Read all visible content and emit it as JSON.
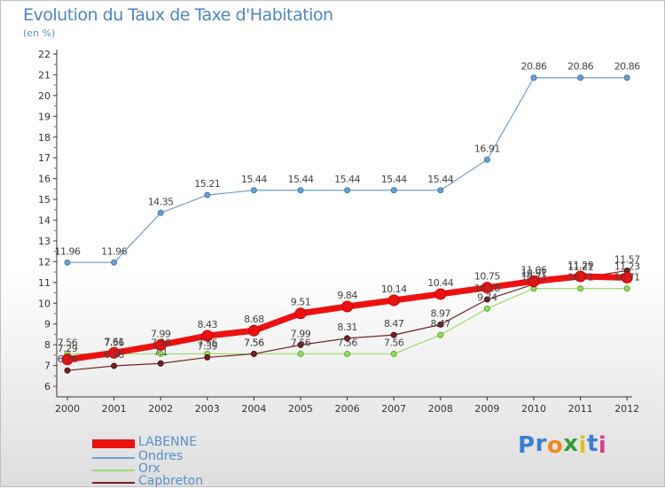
{
  "title": "Evolution du Taux de Taxe d'Habitation",
  "subtitle": "(en %)",
  "logo": {
    "text": "Proxiti",
    "letters": [
      "P",
      "r",
      "o",
      "x",
      "i",
      "t",
      "i"
    ],
    "colors": [
      "#3a7fd0",
      "#3a7fd0",
      "#f08a1a",
      "#2f9e3a",
      "#e0c21a",
      "#3a7fd0",
      "#e03a8a"
    ]
  },
  "chart_data": {
    "type": "line",
    "title": "Evolution du Taux de Taxe d'Habitation",
    "ylabel": "(en %)",
    "xlabel": "",
    "ylim": [
      6,
      22
    ],
    "yticks": [
      6,
      7,
      8,
      9,
      10,
      11,
      12,
      13,
      14,
      15,
      16,
      17,
      18,
      19,
      20,
      21,
      22
    ],
    "categories": [
      "2000",
      "2001",
      "2002",
      "2003",
      "2004",
      "2005",
      "2006",
      "2007",
      "2008",
      "2009",
      "2010",
      "2011",
      "2012"
    ],
    "grid": false,
    "legend_position": "bottom-left",
    "series": [
      {
        "name": "LABENNE",
        "color": "#ee1111",
        "values": [
          7.29,
          7.61,
          7.99,
          8.43,
          8.68,
          9.51,
          9.84,
          10.14,
          10.44,
          10.75,
          11.06,
          11.29,
          11.23
        ],
        "labels": [
          "7.29",
          "7.61",
          "7.99",
          "8.43",
          "8.68",
          "9.51",
          "9.84",
          "10.14",
          "10.44",
          "10.75",
          "11.06",
          "11.29",
          "11.23"
        ]
      },
      {
        "name": "Ondres",
        "color": "#6f9fd0",
        "values": [
          11.96,
          11.96,
          14.35,
          15.21,
          15.44,
          15.44,
          15.44,
          15.44,
          15.44,
          16.91,
          20.86,
          20.86,
          20.86
        ],
        "labels": [
          "11.96",
          "11.96",
          "14.35",
          "15.21",
          "15.44",
          "15.44",
          "15.44",
          "15.44",
          "15.44",
          "16.91",
          "20.86",
          "20.86",
          "20.86"
        ]
      },
      {
        "name": "Orx",
        "color": "#99dd66",
        "values": [
          7.56,
          7.56,
          7.56,
          7.56,
          7.56,
          7.56,
          7.56,
          7.56,
          8.47,
          9.74,
          10.71,
          10.71,
          10.71
        ],
        "labels": [
          "7.56",
          "7.56",
          "7.56",
          "7.56",
          "7.56",
          "7.56",
          "7.56",
          "7.56",
          "8.47",
          "9.74",
          "10.71",
          "10.71",
          "10.71"
        ]
      },
      {
        "name": "Capbreton",
        "color": "#772222",
        "values": [
          6.76,
          6.98,
          7.1,
          7.39,
          7.56,
          7.99,
          8.31,
          8.47,
          8.97,
          10.18,
          10.91,
          11.21,
          11.57
        ],
        "labels": [
          "6.76",
          "6.98",
          "7.1",
          "7.39",
          "7.56",
          "7.99",
          "8.31",
          "8.47",
          "8.97",
          "10.18",
          "10.91",
          "11.21",
          "11.57"
        ]
      }
    ]
  }
}
